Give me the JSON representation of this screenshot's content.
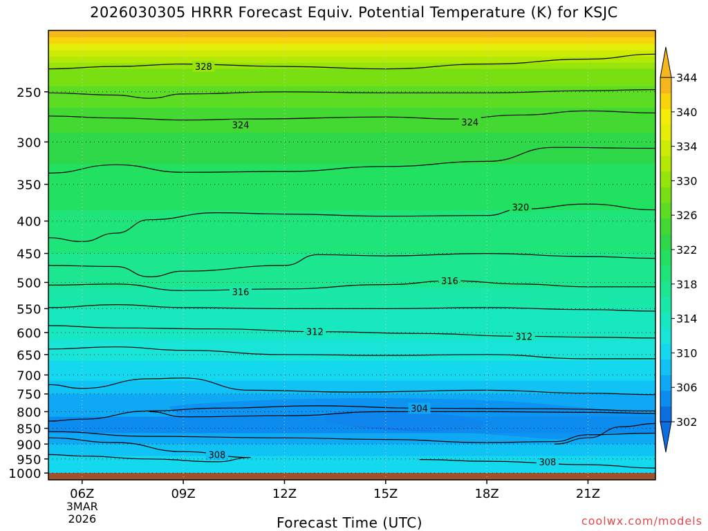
{
  "title": "2026030305 HRRR Forecast Equiv. Potential Temperature (K) for KSJC",
  "credit": "coolwx.com/models",
  "chart_data": {
    "type": "heatmap",
    "title": "2026030305 HRRR Forecast Equiv. Potential Temperature (K) for KSJC",
    "xlabel": "Forecast Time (UTC)",
    "ylabel": "",
    "x_ticks": [
      "06Z",
      "09Z",
      "12Z",
      "15Z",
      "18Z",
      "21Z"
    ],
    "x_tick_hours": [
      6,
      9,
      12,
      15,
      18,
      21
    ],
    "x_range_hours": [
      5,
      23
    ],
    "x_date_label": [
      "3MAR",
      "2026"
    ],
    "y_ticks": [
      250,
      300,
      350,
      400,
      450,
      500,
      550,
      600,
      650,
      700,
      750,
      800,
      850,
      900,
      950,
      1000
    ],
    "y_range_hPa": [
      200,
      1025
    ],
    "y_scale": "log",
    "y_reversed": true,
    "grid": true,
    "colorbar_labels": [
      302,
      306,
      310,
      314,
      318,
      322,
      326,
      330,
      334,
      340,
      344
    ],
    "colorbar_levels": [
      298,
      302,
      304,
      306,
      308,
      310,
      312,
      314,
      316,
      318,
      320,
      322,
      324,
      326,
      328,
      330,
      332,
      334,
      336,
      338,
      340,
      342,
      344
    ],
    "colorbar_colors": [
      "#0b6fe0",
      "#0d8cf0",
      "#0ea8f5",
      "#11c3f5",
      "#14d8ee",
      "#18e5d8",
      "#18e8c0",
      "#1ae8a8",
      "#1ce690",
      "#1ee47a",
      "#22e060",
      "#2ed848",
      "#44d832",
      "#5cdc22",
      "#78e012",
      "#96e40a",
      "#b4e806",
      "#ccec08",
      "#e4ee08",
      "#f6ec08",
      "#f8d40a",
      "#f4b81c"
    ],
    "contour_interval": 4,
    "contour_labels": [
      {
        "value": 328,
        "hour": 9.6,
        "p": 228
      },
      {
        "value": 324,
        "hour": 10.7,
        "p": 282
      },
      {
        "value": 324,
        "hour": 17.5,
        "p": 279
      },
      {
        "value": 320,
        "hour": 19.0,
        "p": 380
      },
      {
        "value": 316,
        "hour": 10.7,
        "p": 517
      },
      {
        "value": 316,
        "hour": 16.9,
        "p": 497
      },
      {
        "value": 312,
        "hour": 12.9,
        "p": 598
      },
      {
        "value": 312,
        "hour": 19.1,
        "p": 608
      },
      {
        "value": 308,
        "hour": 10.0,
        "p": 935
      },
      {
        "value": 308,
        "hour": 19.8,
        "p": 960
      },
      {
        "value": 304,
        "hour": 16.0,
        "p": 790
      }
    ],
    "terrain_color": "#a0522d"
  }
}
